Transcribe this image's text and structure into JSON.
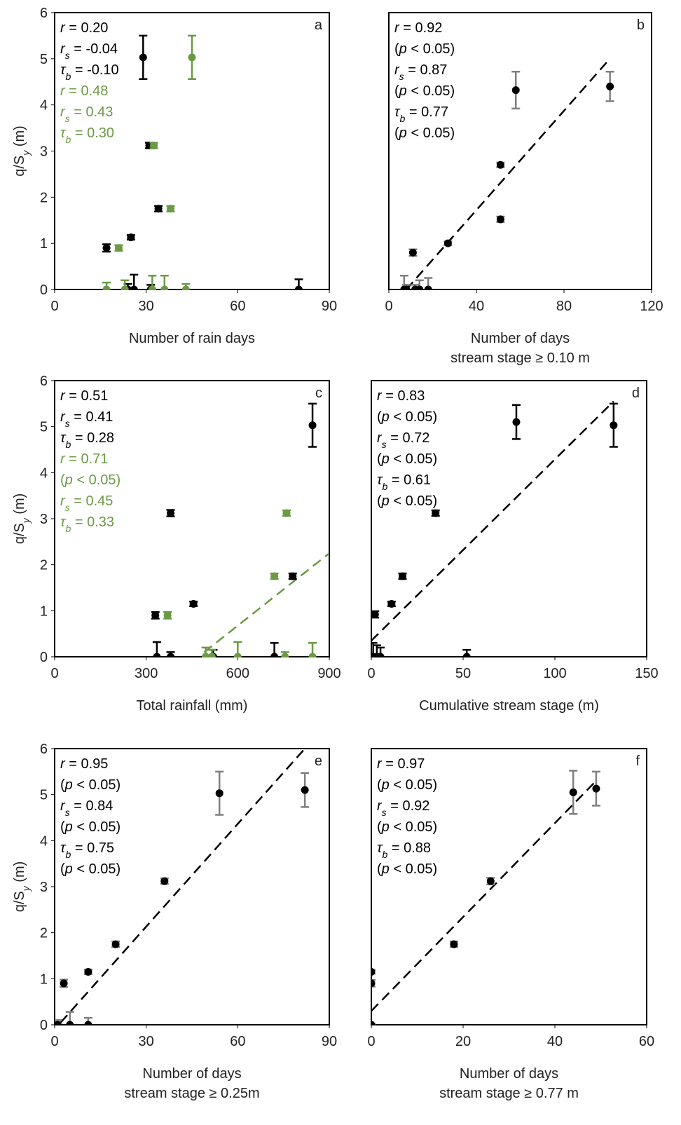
{
  "chart_data": [
    {
      "type": "scatter",
      "label": "a",
      "xlabel": [
        "Number of rain days"
      ],
      "ylabel": [
        {
          "text": "q/S"
        },
        {
          "text": "y",
          "style": "sub"
        },
        {
          "text": " (m)"
        }
      ],
      "xlim": [
        0,
        90
      ],
      "xticks": [
        0,
        30,
        60,
        90
      ],
      "ylim": [
        0,
        6
      ],
      "yticks": [
        0,
        1,
        2,
        3,
        4,
        5,
        6
      ],
      "series": [
        {
          "color": "#000000",
          "errorbar_color": "#000000",
          "x": [
            17,
            25,
            29,
            31,
            34,
            24,
            26,
            31.5,
            80
          ],
          "values": [
            0.9,
            1.13,
            5.03,
            3.12,
            1.75,
            0,
            0,
            0,
            0
          ],
          "errors": [
            0.08,
            0.05,
            0.47,
            0.06,
            0.06,
            0.12,
            0.32,
            0.1,
            0.22
          ]
        },
        {
          "color": "#6a9a44",
          "errorbar_color": "#6a9a44",
          "x": [
            21,
            32.5,
            38,
            45,
            17,
            23,
            32,
            36,
            43
          ],
          "values": [
            0.9,
            3.12,
            1.75,
            5.03,
            0,
            0,
            0,
            0,
            0
          ],
          "errors": [
            0.06,
            0.06,
            0.06,
            0.47,
            0.15,
            0.2,
            0.3,
            0.3,
            0.12
          ]
        }
      ],
      "annotations": [
        {
          "color": "#000000",
          "parts": [
            {
              "text": "r",
              "style": "i"
            },
            {
              "text": " = 0.20"
            }
          ]
        },
        {
          "color": "#000000",
          "parts": [
            {
              "text": "r",
              "style": "i"
            },
            {
              "text": "s",
              "style": "sub"
            },
            {
              "text": " = -0.04"
            }
          ]
        },
        {
          "color": "#000000",
          "parts": [
            {
              "text": "τ",
              "style": "i"
            },
            {
              "text": "b",
              "style": "sub"
            },
            {
              "text": " = -0.10"
            }
          ]
        },
        {
          "color": "#6a9a44",
          "parts": [
            {
              "text": "r",
              "style": "i"
            },
            {
              "text": " = 0.48"
            }
          ]
        },
        {
          "color": "#6a9a44",
          "parts": [
            {
              "text": "r",
              "style": "i"
            },
            {
              "text": "s",
              "style": "sub"
            },
            {
              "text": " = 0.43"
            }
          ]
        },
        {
          "color": "#6a9a44",
          "parts": [
            {
              "text": "τ",
              "style": "i"
            },
            {
              "text": "b",
              "style": "sub"
            },
            {
              "text": " = 0.30"
            }
          ]
        }
      ]
    },
    {
      "type": "scatter",
      "label": "b",
      "xlabel": [
        "Number of days",
        "stream stage ≥ 0.10 m"
      ],
      "xlim": [
        0,
        120
      ],
      "xticks": [
        0,
        40,
        80,
        120
      ],
      "ylim": [
        0,
        6
      ],
      "series": [
        {
          "color": "#000000",
          "errorbar_color": "#7f7f7f",
          "x": [
            11,
            27,
            51,
            51,
            58,
            101,
            7,
            8,
            12,
            14,
            18
          ],
          "values": [
            0.8,
            1.0,
            1.52,
            2.7,
            4.32,
            4.4,
            0,
            0,
            0,
            0,
            0
          ],
          "errors": [
            0.07,
            0.04,
            0.06,
            0.05,
            0.4,
            0.32,
            0.3,
            0.1,
            0.1,
            0.2,
            0.25
          ]
        }
      ],
      "trendline": {
        "color": "#000000",
        "x": [
          8,
          100
        ],
        "y": [
          0,
          4.95
        ]
      },
      "annotations": [
        {
          "color": "#000000",
          "parts": [
            {
              "text": "r",
              "style": "i"
            },
            {
              "text": " = 0.92"
            }
          ]
        },
        {
          "color": "#000000",
          "parts": [
            {
              "text": "("
            },
            {
              "text": "p",
              "style": "i"
            },
            {
              "text": " < 0.05)"
            }
          ]
        },
        {
          "color": "#000000",
          "parts": [
            {
              "text": "r",
              "style": "i"
            },
            {
              "text": "s",
              "style": "sub"
            },
            {
              "text": " = 0.87"
            }
          ]
        },
        {
          "color": "#000000",
          "parts": [
            {
              "text": "("
            },
            {
              "text": "p",
              "style": "i"
            },
            {
              "text": " < 0.05)"
            }
          ]
        },
        {
          "color": "#000000",
          "parts": [
            {
              "text": "τ",
              "style": "i"
            },
            {
              "text": "b",
              "style": "sub"
            },
            {
              "text": " = 0.77"
            }
          ]
        },
        {
          "color": "#000000",
          "parts": [
            {
              "text": "("
            },
            {
              "text": "p",
              "style": "i"
            },
            {
              "text": " < 0.05)"
            }
          ]
        }
      ]
    },
    {
      "type": "scatter",
      "label": "c",
      "xlabel": [
        "Total rainfall (mm)"
      ],
      "ylabel": [
        {
          "text": "q/S"
        },
        {
          "text": "y",
          "style": "sub"
        },
        {
          "text": " (m)"
        }
      ],
      "xlim": [
        0,
        900
      ],
      "xticks": [
        0,
        300,
        600,
        900
      ],
      "ylim": [
        0,
        6
      ],
      "yticks": [
        0,
        1,
        2,
        3,
        4,
        5,
        6
      ],
      "series": [
        {
          "color": "#000000",
          "errorbar_color": "#000000",
          "x": [
            330,
            380,
            455,
            780,
            845,
            335,
            380,
            520,
            720
          ],
          "values": [
            0.9,
            3.12,
            1.15,
            1.75,
            5.03,
            0,
            0,
            0,
            0
          ],
          "errors": [
            0.07,
            0.07,
            0.05,
            0.06,
            0.47,
            0.32,
            0.1,
            0.15,
            0.3
          ]
        },
        {
          "color": "#6a9a44",
          "errorbar_color": "#6a9a44",
          "x": [
            370,
            720,
            760,
            495,
            515,
            600,
            755,
            845
          ],
          "values": [
            0.9,
            1.75,
            3.12,
            0,
            0,
            0,
            0,
            0
          ],
          "errors": [
            0.07,
            0.06,
            0.06,
            0.2,
            0.15,
            0.32,
            0.1,
            0.3
          ]
        }
      ],
      "trendline": {
        "color": "#6a9a44",
        "x": [
          490,
          900
        ],
        "y": [
          0.1,
          2.25
        ]
      },
      "annotations": [
        {
          "color": "#000000",
          "parts": [
            {
              "text": "r",
              "style": "i"
            },
            {
              "text": " = 0.51"
            }
          ]
        },
        {
          "color": "#000000",
          "parts": [
            {
              "text": "r",
              "style": "i"
            },
            {
              "text": "s",
              "style": "sub"
            },
            {
              "text": " = 0.41"
            }
          ]
        },
        {
          "color": "#000000",
          "parts": [
            {
              "text": "τ",
              "style": "i"
            },
            {
              "text": "b",
              "style": "sub"
            },
            {
              "text": " = 0.28"
            }
          ]
        },
        {
          "color": "#6a9a44",
          "parts": [
            {
              "text": "r",
              "style": "i"
            },
            {
              "text": " = 0.71"
            }
          ]
        },
        {
          "color": "#6a9a44",
          "parts": [
            {
              "text": "("
            },
            {
              "text": "p",
              "style": "i"
            },
            {
              "text": " < 0.05)"
            }
          ]
        },
        {
          "color": "#6a9a44",
          "parts": [
            {
              "text": "r",
              "style": "i"
            },
            {
              "text": "s",
              "style": "sub"
            },
            {
              "text": " = 0.45"
            }
          ]
        },
        {
          "color": "#6a9a44",
          "parts": [
            {
              "text": "τ",
              "style": "i"
            },
            {
              "text": "b",
              "style": "sub"
            },
            {
              "text": " = 0.33"
            }
          ]
        }
      ]
    },
    {
      "type": "scatter",
      "label": "d",
      "xlabel": [
        "Cumulative stream stage (m)"
      ],
      "xlim": [
        0,
        150
      ],
      "xticks": [
        0,
        50,
        100,
        150
      ],
      "ylim": [
        0,
        6
      ],
      "series": [
        {
          "color": "#000000",
          "errorbar_color": "#000000",
          "x": [
            2,
            11,
            17,
            35,
            79,
            132,
            1,
            3,
            5,
            52
          ],
          "values": [
            0.92,
            1.15,
            1.75,
            3.12,
            5.1,
            5.03,
            0,
            0,
            0,
            0
          ],
          "errors": [
            0.07,
            0.05,
            0.06,
            0.06,
            0.37,
            0.47,
            0.3,
            0.25,
            0.2,
            0.15
          ]
        }
      ],
      "trendline": {
        "color": "#000000",
        "x": [
          0,
          132
        ],
        "y": [
          0.35,
          5.55
        ]
      },
      "annotations": [
        {
          "color": "#000000",
          "parts": [
            {
              "text": "r",
              "style": "i"
            },
            {
              "text": " = 0.83"
            }
          ]
        },
        {
          "color": "#000000",
          "parts": [
            {
              "text": "("
            },
            {
              "text": "p",
              "style": "i"
            },
            {
              "text": " < 0.05)"
            }
          ]
        },
        {
          "color": "#000000",
          "parts": [
            {
              "text": "r",
              "style": "i"
            },
            {
              "text": "s",
              "style": "sub"
            },
            {
              "text": " = 0.72"
            }
          ]
        },
        {
          "color": "#000000",
          "parts": [
            {
              "text": "("
            },
            {
              "text": "p",
              "style": "i"
            },
            {
              "text": " < 0.05)"
            }
          ]
        },
        {
          "color": "#000000",
          "parts": [
            {
              "text": "τ",
              "style": "i"
            },
            {
              "text": "b",
              "style": "sub"
            },
            {
              "text": " = 0.61"
            }
          ]
        },
        {
          "color": "#000000",
          "parts": [
            {
              "text": "("
            },
            {
              "text": "p",
              "style": "i"
            },
            {
              "text": " < 0.05)"
            }
          ]
        }
      ]
    },
    {
      "type": "scatter",
      "label": "e",
      "xlabel": [
        "Number of days",
        "stream stage ≥ 0.25m"
      ],
      "ylabel": [
        {
          "text": "q/S"
        },
        {
          "text": "y",
          "style": "sub"
        },
        {
          "text": " (m)"
        }
      ],
      "xlim": [
        0,
        90
      ],
      "xticks": [
        0,
        30,
        60,
        90
      ],
      "ylim": [
        0,
        6
      ],
      "yticks": [
        0,
        1,
        2,
        3,
        4,
        5,
        6
      ],
      "series": [
        {
          "color": "#000000",
          "errorbar_color": "#7f7f7f",
          "x": [
            3,
            11,
            20,
            36,
            54,
            82,
            1,
            5,
            11
          ],
          "values": [
            0.9,
            1.15,
            1.75,
            3.12,
            5.03,
            5.1,
            0,
            0,
            0
          ],
          "errors": [
            0.08,
            0.05,
            0.06,
            0.06,
            0.47,
            0.37,
            0.1,
            0.28,
            0.15
          ]
        }
      ],
      "trendline": {
        "color": "#000000",
        "x": [
          2,
          82
        ],
        "y": [
          0.05,
          6
        ]
      },
      "annotations": [
        {
          "color": "#000000",
          "parts": [
            {
              "text": "r",
              "style": "i"
            },
            {
              "text": " = 0.95"
            }
          ]
        },
        {
          "color": "#000000",
          "parts": [
            {
              "text": "("
            },
            {
              "text": "p",
              "style": "i"
            },
            {
              "text": " < 0.05)"
            }
          ]
        },
        {
          "color": "#000000",
          "parts": [
            {
              "text": "r",
              "style": "i"
            },
            {
              "text": "s",
              "style": "sub"
            },
            {
              "text": " = 0.84"
            }
          ]
        },
        {
          "color": "#000000",
          "parts": [
            {
              "text": "("
            },
            {
              "text": "p",
              "style": "i"
            },
            {
              "text": " < 0.05)"
            }
          ]
        },
        {
          "color": "#000000",
          "parts": [
            {
              "text": "τ",
              "style": "i"
            },
            {
              "text": "b",
              "style": "sub"
            },
            {
              "text": " = 0.75"
            }
          ]
        },
        {
          "color": "#000000",
          "parts": [
            {
              "text": "("
            },
            {
              "text": "p",
              "style": "i"
            },
            {
              "text": " < 0.05)"
            }
          ]
        }
      ]
    },
    {
      "type": "scatter",
      "label": "f",
      "xlabel": [
        "Number of days",
        "stream stage ≥ 0.77 m"
      ],
      "xlim": [
        0,
        60
      ],
      "xticks": [
        0,
        20,
        40,
        60
      ],
      "ylim": [
        0,
        6
      ],
      "series": [
        {
          "color": "#000000",
          "errorbar_color": "#7f7f7f",
          "x": [
            0,
            0,
            0,
            18,
            26,
            44,
            49
          ],
          "values": [
            1.15,
            0.9,
            0,
            1.75,
            3.12,
            5.05,
            5.13
          ],
          "errors": [
            0.04,
            0.07,
            0.02,
            0.06,
            0.07,
            0.47,
            0.37
          ]
        }
      ],
      "trendline": {
        "color": "#000000",
        "x": [
          0,
          49
        ],
        "y": [
          0.3,
          5.3
        ]
      },
      "annotations": [
        {
          "color": "#000000",
          "parts": [
            {
              "text": "r",
              "style": "i"
            },
            {
              "text": " = 0.97"
            }
          ]
        },
        {
          "color": "#000000",
          "parts": [
            {
              "text": "("
            },
            {
              "text": "p",
              "style": "i"
            },
            {
              "text": " < 0.05)"
            }
          ]
        },
        {
          "color": "#000000",
          "parts": [
            {
              "text": "r",
              "style": "i"
            },
            {
              "text": "s",
              "style": "sub"
            },
            {
              "text": " = 0.92"
            }
          ]
        },
        {
          "color": "#000000",
          "parts": [
            {
              "text": "("
            },
            {
              "text": "p",
              "style": "i"
            },
            {
              "text": " < 0.05)"
            }
          ]
        },
        {
          "color": "#000000",
          "parts": [
            {
              "text": "τ",
              "style": "i"
            },
            {
              "text": "b",
              "style": "sub"
            },
            {
              "text": " = 0.88"
            }
          ]
        },
        {
          "color": "#000000",
          "parts": [
            {
              "text": "("
            },
            {
              "text": "p",
              "style": "i"
            },
            {
              "text": " < 0.05)"
            }
          ]
        }
      ]
    }
  ]
}
